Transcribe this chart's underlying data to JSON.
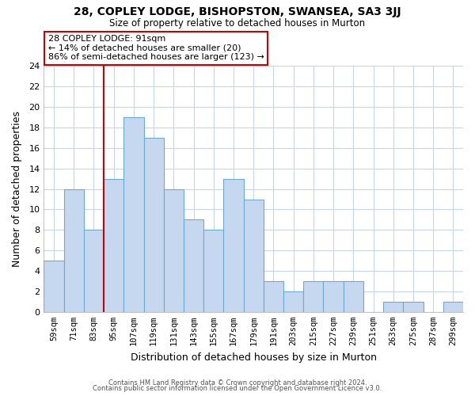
{
  "title": "28, COPLEY LODGE, BISHOPSTON, SWANSEA, SA3 3JJ",
  "subtitle": "Size of property relative to detached houses in Murton",
  "xlabel": "Distribution of detached houses by size in Murton",
  "ylabel": "Number of detached properties",
  "bar_color": "#c5d8f0",
  "bar_edge_color": "#6aaad4",
  "categories": [
    "59sqm",
    "71sqm",
    "83sqm",
    "95sqm",
    "107sqm",
    "119sqm",
    "131sqm",
    "143sqm",
    "155sqm",
    "167sqm",
    "179sqm",
    "191sqm",
    "203sqm",
    "215sqm",
    "227sqm",
    "239sqm",
    "251sqm",
    "263sqm",
    "275sqm",
    "287sqm",
    "299sqm"
  ],
  "values": [
    5,
    12,
    8,
    13,
    19,
    17,
    12,
    9,
    8,
    13,
    11,
    3,
    2,
    3,
    3,
    3,
    0,
    1,
    1,
    0,
    1
  ],
  "ylim": [
    0,
    24
  ],
  "yticks": [
    0,
    2,
    4,
    6,
    8,
    10,
    12,
    14,
    16,
    18,
    20,
    22,
    24
  ],
  "property_line_x": 2.5,
  "annotation_title": "28 COPLEY LODGE: 91sqm",
  "annotation_line1": "← 14% of detached houses are smaller (20)",
  "annotation_line2": "86% of semi-detached houses are larger (123) →",
  "annotation_box_color": "#ffffff",
  "annotation_box_edge": "#cc0000",
  "property_line_color": "#cc0000",
  "grid_color": "#c8d4e8",
  "background_color": "#ffffff",
  "footer_line1": "Contains HM Land Registry data © Crown copyright and database right 2024.",
  "footer_line2": "Contains public sector information licensed under the Open Government Licence v3.0."
}
